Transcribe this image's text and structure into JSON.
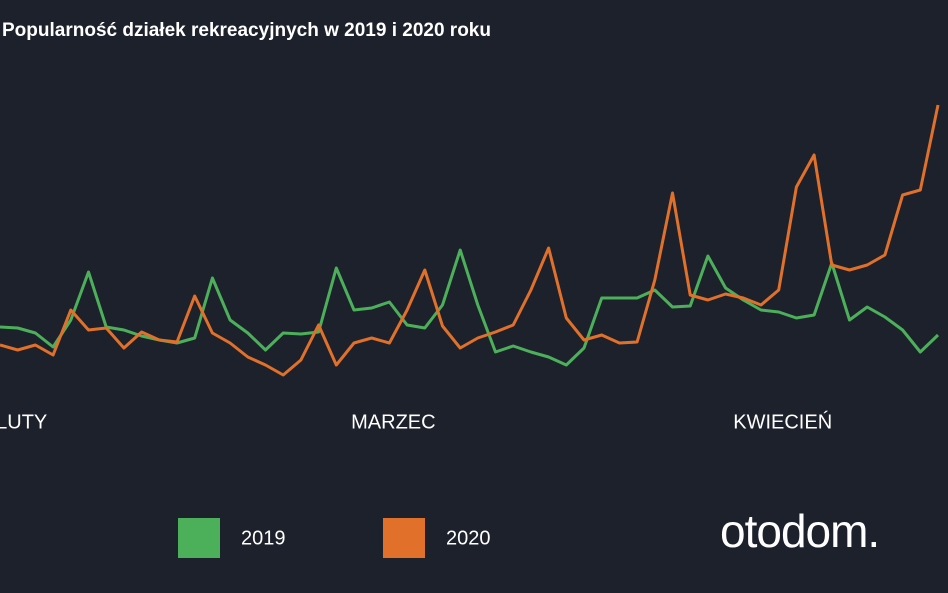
{
  "chart_data": {
    "type": "line",
    "title": "Popularność działek rekreacyjnych w 2019 i 2020 roku",
    "categories": [
      null,
      "LUTY",
      null,
      null,
      null,
      null,
      null,
      null,
      null,
      null,
      null,
      null,
      null,
      null,
      null,
      null,
      null,
      null,
      null,
      null,
      null,
      null,
      "MARZEC",
      null,
      null,
      null,
      null,
      null,
      null,
      null,
      null,
      null,
      null,
      null,
      null,
      null,
      null,
      null,
      null,
      null,
      null,
      null,
      null,
      null,
      "KWIECIEŃ",
      null,
      null,
      null,
      null,
      null,
      null,
      null,
      null,
      null
    ],
    "ylim": [
      0,
      320
    ],
    "series": [
      {
        "name": "2019",
        "color": "#4caf5a",
        "values": [
          73,
          72,
          67,
          53,
          80,
          128,
          73,
          70,
          64,
          60,
          57,
          62,
          122,
          80,
          67,
          50,
          67,
          66,
          68,
          132,
          90,
          92,
          98,
          75,
          72,
          95,
          150,
          95,
          48,
          54,
          48,
          43,
          35,
          52,
          102,
          102,
          102,
          110,
          93,
          94,
          144,
          112,
          100,
          90,
          88,
          82,
          85,
          137,
          80,
          93,
          83,
          70,
          48,
          65
        ]
      },
      {
        "name": "2020",
        "color": "#e0702a",
        "values": [
          55,
          50,
          55,
          45,
          90,
          70,
          72,
          52,
          68,
          60,
          58,
          104,
          67,
          57,
          43,
          35,
          25,
          40,
          75,
          35,
          57,
          62,
          57,
          90,
          130,
          74,
          52,
          62,
          68,
          75,
          110,
          152,
          82,
          60,
          65,
          57,
          58,
          120,
          207,
          105,
          100,
          106,
          102,
          95,
          110,
          213,
          245,
          135,
          130,
          135,
          145,
          205,
          210,
          295
        ]
      }
    ]
  },
  "logo": "otodom."
}
